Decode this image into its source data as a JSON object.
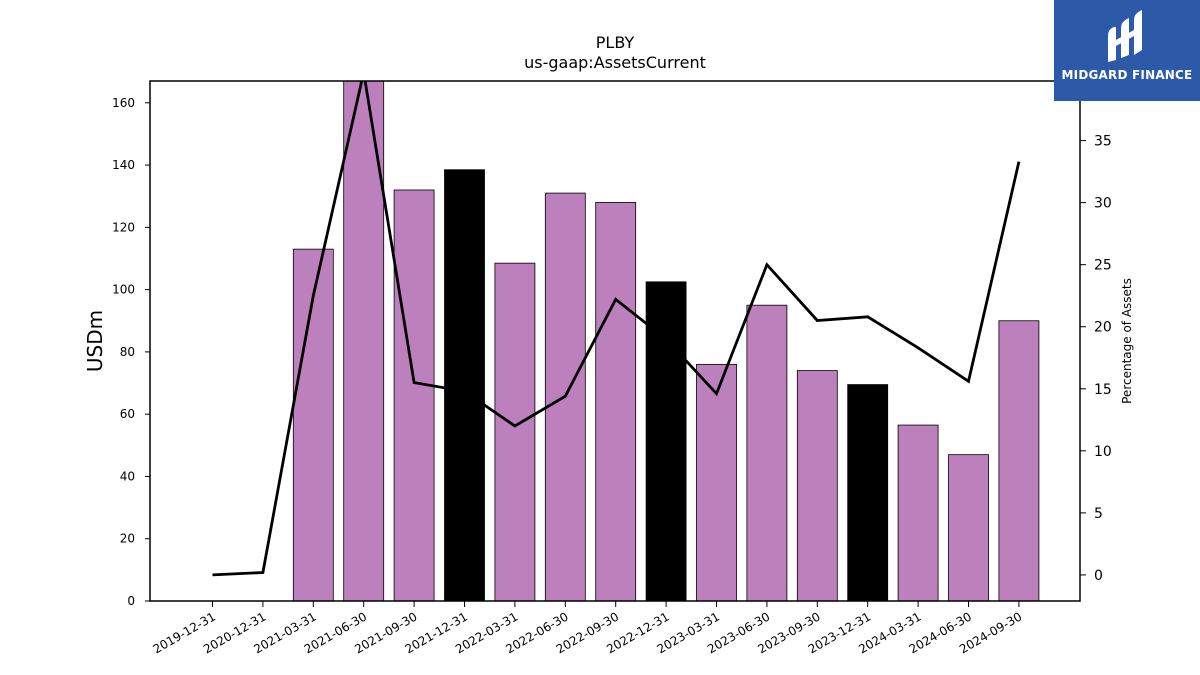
{
  "chart_data": {
    "type": "bar",
    "title": "PLBY",
    "subtitle": "us-gaap:AssetsCurrent",
    "ylabel": "USDm",
    "y2label": "Percentage of Assets",
    "ylim": [
      0,
      167
    ],
    "y2lim": [
      -2.1,
      39.8
    ],
    "yticks": [
      0,
      20,
      40,
      60,
      80,
      100,
      120,
      140,
      160
    ],
    "y2ticks": [
      0,
      5,
      10,
      15,
      20,
      25,
      30,
      35
    ],
    "categories": [
      "2019-12-31",
      "2020-12-31",
      "2021-03-31",
      "2021-06-30",
      "2021-09-30",
      "2021-12-31",
      "2022-03-31",
      "2022-06-30",
      "2022-09-30",
      "2022-12-31",
      "2023-03-31",
      "2023-06-30",
      "2023-09-30",
      "2023-12-31",
      "2024-03-31",
      "2024-06-30",
      "2024-09-30"
    ],
    "series": [
      {
        "kind": "bar",
        "values": [
          0,
          0,
          113,
          167,
          132,
          138.5,
          108.5,
          131,
          128,
          102.5,
          76,
          95,
          74,
          69.5,
          56.5,
          47,
          90
        ],
        "colors": [
          "#bc80bd",
          "#bc80bd",
          "#bc80bd",
          "#bc80bd",
          "#bc80bd",
          "#000000",
          "#bc80bd",
          "#bc80bd",
          "#bc80bd",
          "#000000",
          "#bc80bd",
          "#bc80bd",
          "#bc80bd",
          "#000000",
          "#bc80bd",
          "#bc80bd",
          "#bc80bd"
        ]
      },
      {
        "kind": "line",
        "axis": "right",
        "color": "#000000",
        "values": [
          0,
          0.2,
          22.5,
          40.5,
          15.5,
          14.8,
          12.0,
          14.4,
          22.2,
          19.0,
          14.6,
          25.0,
          20.5,
          20.8,
          18.3,
          15.6,
          33.3
        ]
      }
    ]
  },
  "logo": {
    "text": "MIDGARD FINANCE"
  }
}
